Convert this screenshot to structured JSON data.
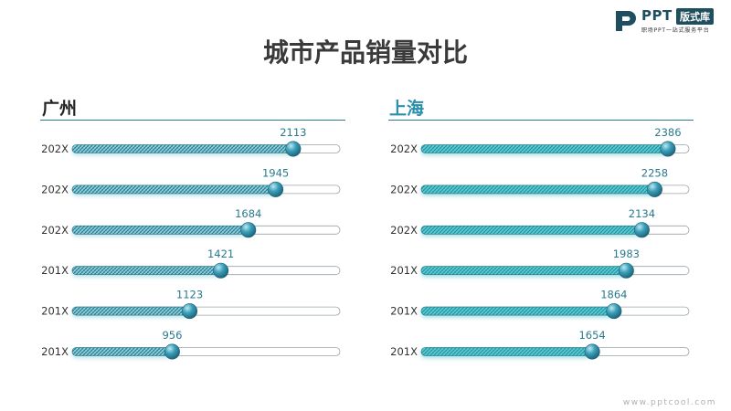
{
  "logo": {
    "brand": "PPT",
    "badge": "版式库",
    "tagline": "职场PPT一站式服务平台"
  },
  "title": "城市产品销量对比",
  "watermark": "www.pptcool.com",
  "colors": {
    "left_fill": "#7fc9d6",
    "right_fill": "#4fc3cc",
    "track_border": "#9aa4aa",
    "knob": "#2f8fa8",
    "value_text": "#2a7a8e",
    "right_title": "#2a8fa8"
  },
  "chart_data": [
    {
      "type": "bar",
      "orientation": "horizontal",
      "title": "广州",
      "categories": [
        "202X",
        "202X",
        "202X",
        "201X",
        "201X",
        "201X"
      ],
      "values": [
        2113,
        1945,
        1684,
        1421,
        1123,
        956
      ],
      "xlim": [
        0,
        2560
      ],
      "grid": false
    },
    {
      "type": "bar",
      "orientation": "horizontal",
      "title": "上海",
      "categories": [
        "202X",
        "202X",
        "202X",
        "201X",
        "201X",
        "201X"
      ],
      "values": [
        2386,
        2258,
        2134,
        1983,
        1864,
        1654
      ],
      "xlim": [
        0,
        2590
      ],
      "grid": false
    }
  ]
}
